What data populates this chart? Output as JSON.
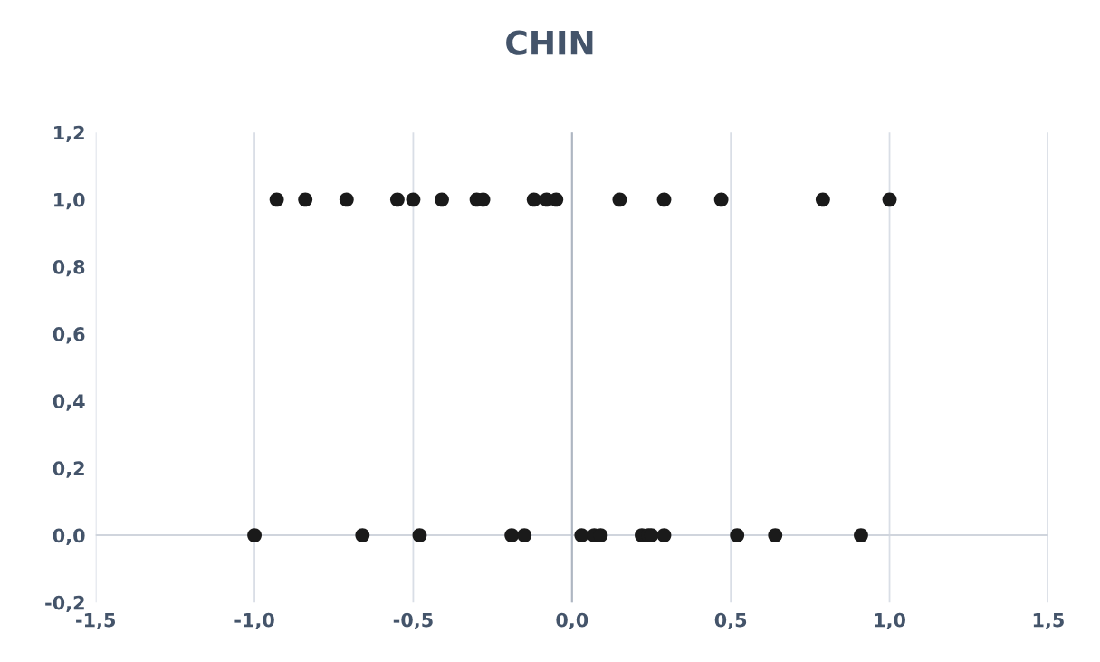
{
  "chart_data": {
    "type": "scatter",
    "title": "CHIN",
    "series": [
      {
        "color": "#1a1a1a",
        "x": [
          -0.93,
          -0.84,
          -0.71,
          -0.55,
          -0.5,
          -0.41,
          -0.3,
          -0.28,
          -0.12,
          -0.08,
          -0.05,
          0.15,
          0.29,
          0.47,
          0.79,
          1.0,
          -1.0,
          -0.66,
          -0.48,
          -0.19,
          -0.15,
          0.03,
          0.07,
          0.09,
          0.22,
          0.24,
          0.25,
          0.29,
          0.52,
          0.64,
          0.91
        ],
        "values": [
          1,
          1,
          1,
          1,
          1,
          1,
          1,
          1,
          1,
          1,
          1,
          1,
          1,
          1,
          1,
          1,
          0,
          0,
          0,
          0,
          0,
          0,
          0,
          0,
          0,
          0,
          0,
          0,
          0,
          0,
          0
        ]
      }
    ],
    "xlim": [
      -1.5,
      1.5
    ],
    "ylim": [
      -0.2,
      1.2
    ],
    "xticks": [
      {
        "value": -1.5,
        "label": "-1,5"
      },
      {
        "value": -1.0,
        "label": "-1,0"
      },
      {
        "value": -0.5,
        "label": "-0,5"
      },
      {
        "value": 0.0,
        "label": "0,0"
      },
      {
        "value": 0.5,
        "label": "0,5"
      },
      {
        "value": 1.0,
        "label": "1,0"
      },
      {
        "value": 1.5,
        "label": "1,5"
      }
    ],
    "yticks": [
      {
        "value": -0.2,
        "label": "-0,2"
      },
      {
        "value": 0.0,
        "label": "0,0"
      },
      {
        "value": 0.2,
        "label": "0,2"
      },
      {
        "value": 0.4,
        "label": "0,4"
      },
      {
        "value": 0.6,
        "label": "0,6"
      },
      {
        "value": 0.8,
        "label": "0,8"
      },
      {
        "value": 1.0,
        "label": "1,0"
      },
      {
        "value": 1.2,
        "label": "1,2"
      }
    ],
    "grid": "x",
    "marker": "circle"
  }
}
